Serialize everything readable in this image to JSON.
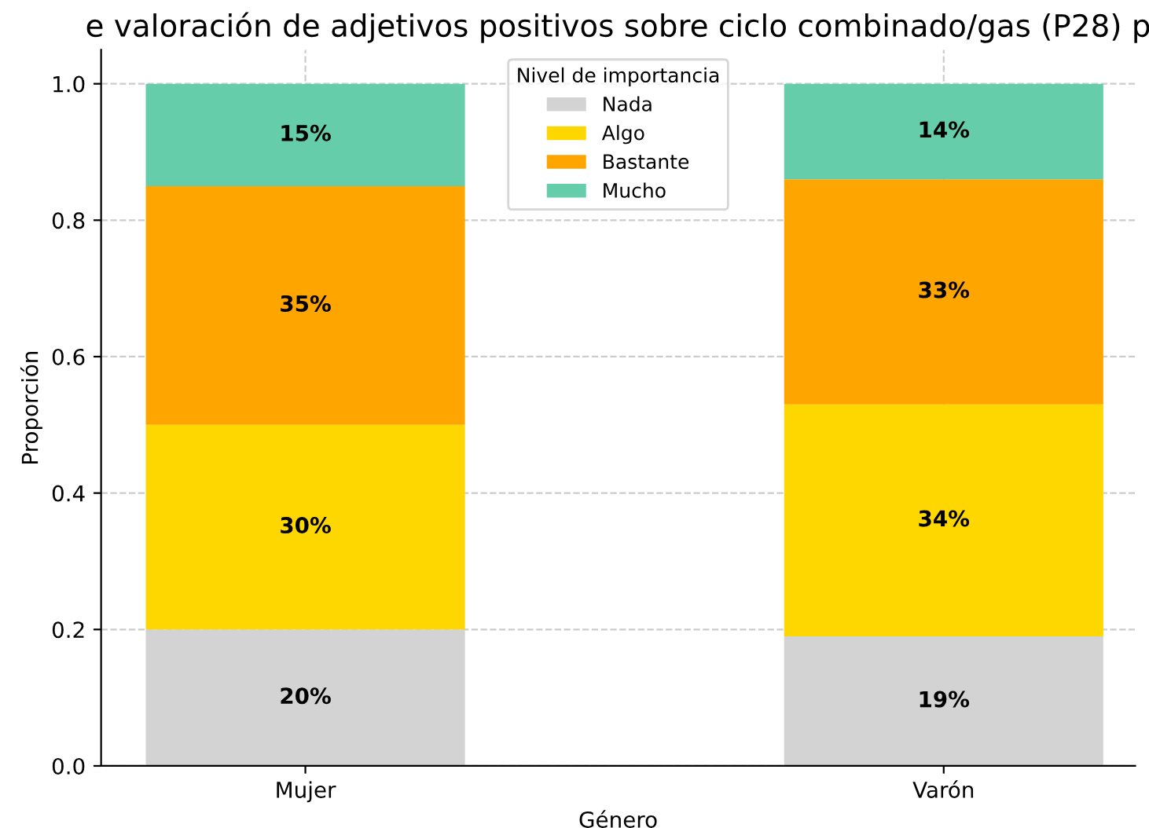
{
  "chart_data": {
    "type": "bar",
    "stacked": true,
    "title": "e valoración de adjetivos positivos sobre ciclo combinado/gas (P28) p",
    "xlabel": "Género",
    "ylabel": "Proporción",
    "legend_title": "Nivel de importancia",
    "categories": [
      "Mujer",
      "Varón"
    ],
    "series": [
      {
        "name": "Nada",
        "color": "#d3d3d3",
        "values": [
          0.2,
          0.19
        ],
        "value_labels": [
          "20%",
          "19%"
        ]
      },
      {
        "name": "Algo",
        "color": "#ffd700",
        "values": [
          0.3,
          0.34
        ],
        "value_labels": [
          "30%",
          "34%"
        ]
      },
      {
        "name": "Bastante",
        "color": "#ffa500",
        "values": [
          0.35,
          0.33
        ],
        "value_labels": [
          "35%",
          "33%"
        ]
      },
      {
        "name": "Mucho",
        "color": "#66cdaa",
        "values": [
          0.15,
          0.14
        ],
        "value_labels": [
          "15%",
          "14%"
        ]
      }
    ],
    "ylim": [
      0,
      1.05
    ],
    "yticks": [
      {
        "value": 0,
        "label": "0.0"
      },
      0.2,
      0.4,
      0.6,
      0.8,
      {
        "value": 1,
        "label": "1.0"
      }
    ],
    "grid": true,
    "legend": "top"
  }
}
